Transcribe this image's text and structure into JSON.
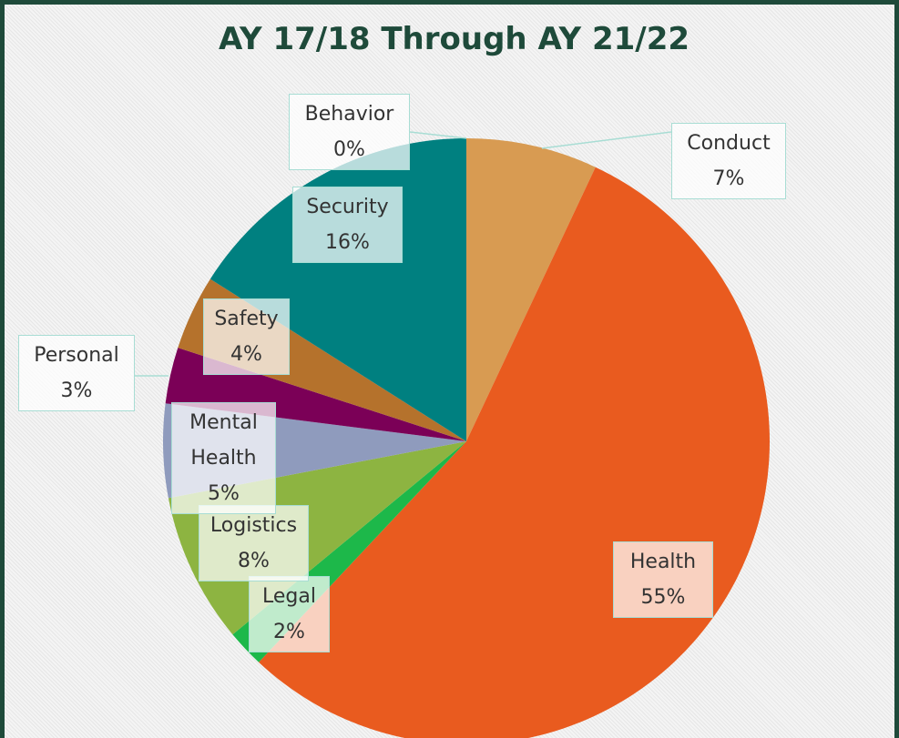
{
  "chart_data": {
    "type": "pie",
    "title": "AY 17/18 Through AY 21/22",
    "categories": [
      "Conduct",
      "Health",
      "Legal",
      "Logistics",
      "Mental Health",
      "Personal",
      "Safety",
      "Security",
      "Behavior"
    ],
    "values": [
      7,
      55,
      2,
      8,
      5,
      3,
      4,
      16,
      0
    ],
    "value_labels": [
      "7%",
      "55%",
      "2%",
      "8%",
      "5%",
      "3%",
      "4%",
      "16%",
      "0%"
    ],
    "colors": [
      "#d89b52",
      "#e95b1f",
      "#1db84a",
      "#8db441",
      "#8f9bbd",
      "#7b0057",
      "#b5722c",
      "#008080",
      "#cfe3e3"
    ]
  }
}
